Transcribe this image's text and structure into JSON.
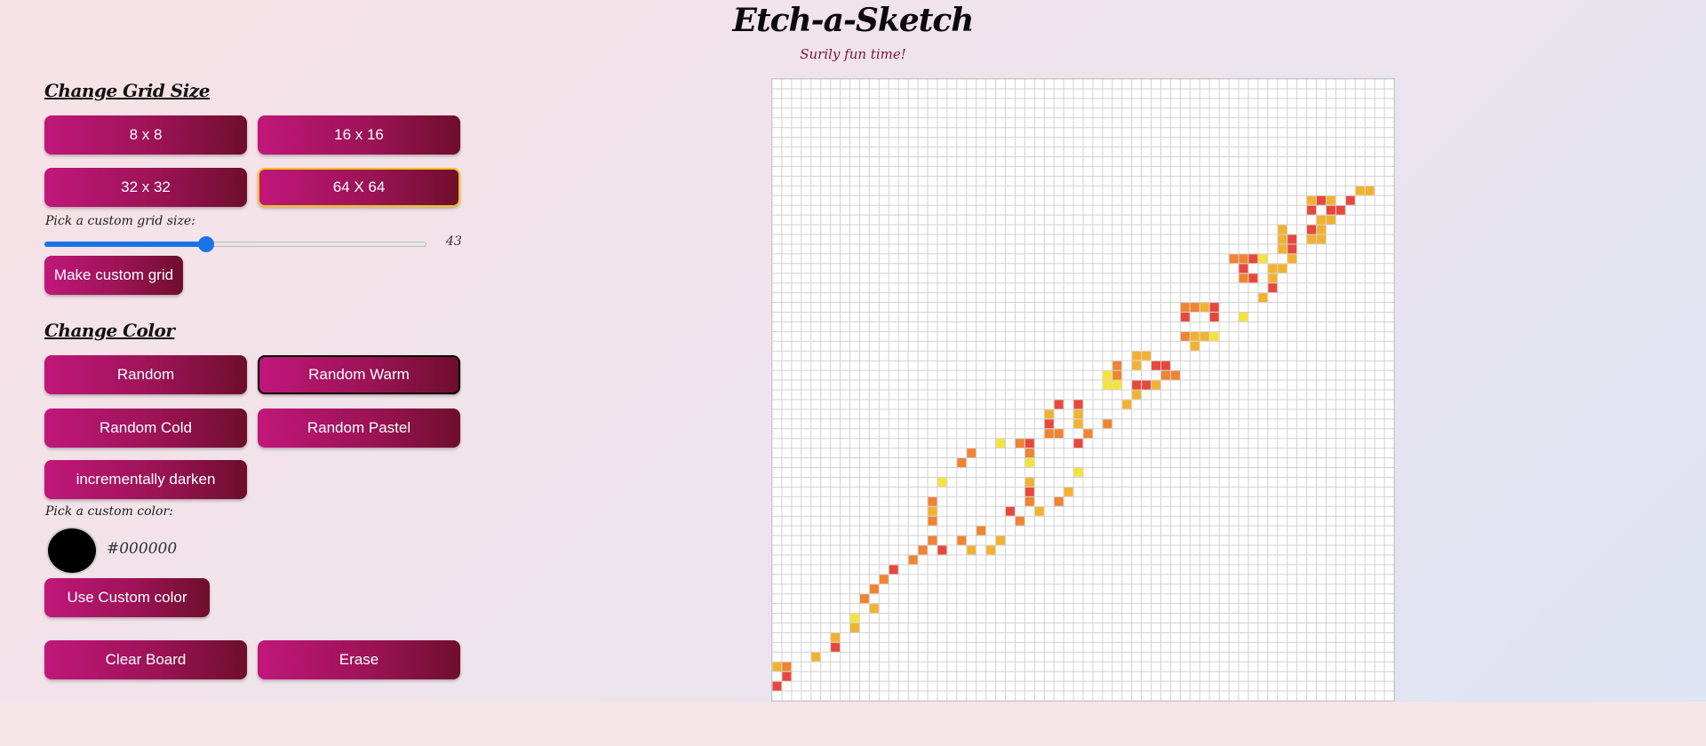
{
  "header": {
    "title": "Etch-a-Sketch",
    "subtitle": "Surily fun time!"
  },
  "grid_size": {
    "heading": "Change Grid Size",
    "buttons": [
      "8 x 8",
      "16 x 16",
      "32 x 32",
      "64 X 64"
    ],
    "selected": "64 X 64",
    "custom_label": "Pick a custom grid size:",
    "slider_min": 1,
    "slider_max": 100,
    "slider_value": 43,
    "slider_value_text": "43",
    "make_custom_label": "Make custom grid"
  },
  "color": {
    "heading": "Change Color",
    "buttons": [
      "Random",
      "Random Warm",
      "Random Cold",
      "Random Pastel",
      "incrementally darken"
    ],
    "selected": "Random Warm",
    "custom_label": "Pick a custom color:",
    "custom_value": "#000000",
    "use_custom_label": "Use Custom color"
  },
  "actions": {
    "clear_label": "Clear Board",
    "erase_label": "Erase"
  },
  "board": {
    "grid_size": 64,
    "palette": {
      "r": "#e8483c",
      "o": "#ef8432",
      "a": "#f1b233",
      "y": "#f3e43d"
    },
    "painted_cells": [
      [
        60,
        59,
        "a"
      ],
      [
        61,
        59,
        "a"
      ],
      [
        55,
        60,
        "a"
      ],
      [
        56,
        60,
        "r"
      ],
      [
        57,
        60,
        "a"
      ],
      [
        59,
        60,
        "r"
      ],
      [
        55,
        61,
        "r"
      ],
      [
        57,
        61,
        "r"
      ],
      [
        58,
        61,
        "r"
      ],
      [
        56,
        62,
        "a"
      ],
      [
        57,
        62,
        "a"
      ],
      [
        52,
        63,
        "a"
      ],
      [
        55,
        63,
        "r"
      ],
      [
        56,
        63,
        "a"
      ],
      [
        52,
        64,
        "a"
      ],
      [
        53,
        64,
        "r"
      ],
      [
        55,
        64,
        "a"
      ],
      [
        56,
        64,
        "a"
      ],
      [
        52,
        65,
        "a"
      ],
      [
        53,
        65,
        "r"
      ],
      [
        47,
        66,
        "o"
      ],
      [
        48,
        66,
        "o"
      ],
      [
        49,
        66,
        "r"
      ],
      [
        50,
        66,
        "y"
      ],
      [
        53,
        66,
        "a"
      ],
      [
        48,
        67,
        "r"
      ],
      [
        51,
        67,
        "a"
      ],
      [
        52,
        67,
        "a"
      ],
      [
        48,
        68,
        "o"
      ],
      [
        49,
        68,
        "r"
      ],
      [
        51,
        68,
        "a"
      ],
      [
        51,
        69,
        "r"
      ],
      [
        50,
        70,
        "a"
      ],
      [
        42,
        71,
        "o"
      ],
      [
        43,
        71,
        "o"
      ],
      [
        44,
        71,
        "a"
      ],
      [
        45,
        71,
        "r"
      ],
      [
        42,
        72,
        "r"
      ],
      [
        45,
        72,
        "r"
      ],
      [
        48,
        72,
        "y"
      ],
      [
        42,
        74,
        "o"
      ],
      [
        43,
        74,
        "a"
      ],
      [
        44,
        74,
        "a"
      ],
      [
        45,
        74,
        "y"
      ],
      [
        43,
        75,
        "a"
      ],
      [
        37,
        76,
        "a"
      ],
      [
        38,
        76,
        "a"
      ],
      [
        35,
        77,
        "o"
      ],
      [
        37,
        77,
        "a"
      ],
      [
        39,
        77,
        "r"
      ],
      [
        40,
        77,
        "r"
      ],
      [
        34,
        78,
        "y"
      ],
      [
        35,
        78,
        "o"
      ],
      [
        40,
        78,
        "o"
      ],
      [
        41,
        78,
        "o"
      ],
      [
        34,
        79,
        "y"
      ],
      [
        35,
        79,
        "y"
      ],
      [
        37,
        79,
        "r"
      ],
      [
        38,
        79,
        "r"
      ],
      [
        39,
        79,
        "a"
      ],
      [
        37,
        80,
        "a"
      ],
      [
        29,
        81,
        "r"
      ],
      [
        31,
        81,
        "r"
      ],
      [
        36,
        81,
        "a"
      ],
      [
        28,
        82,
        "a"
      ],
      [
        31,
        82,
        "a"
      ],
      [
        28,
        83,
        "r"
      ],
      [
        31,
        83,
        "a"
      ],
      [
        34,
        83,
        "o"
      ],
      [
        28,
        84,
        "o"
      ],
      [
        29,
        84,
        "o"
      ],
      [
        32,
        84,
        "o"
      ],
      [
        23,
        85,
        "y"
      ],
      [
        25,
        85,
        "o"
      ],
      [
        26,
        85,
        "r"
      ],
      [
        31,
        85,
        "r"
      ],
      [
        20,
        86,
        "o"
      ],
      [
        26,
        86,
        "o"
      ],
      [
        19,
        87,
        "o"
      ],
      [
        26,
        87,
        "y"
      ],
      [
        31,
        88,
        "y"
      ],
      [
        17,
        89,
        "y"
      ],
      [
        26,
        89,
        "a"
      ],
      [
        26,
        90,
        "r"
      ],
      [
        30,
        90,
        "a"
      ],
      [
        16,
        91,
        "o"
      ],
      [
        26,
        91,
        "o"
      ],
      [
        29,
        91,
        "o"
      ],
      [
        16,
        92,
        "a"
      ],
      [
        24,
        92,
        "r"
      ],
      [
        27,
        92,
        "a"
      ],
      [
        16,
        93,
        "o"
      ],
      [
        25,
        93,
        "o"
      ],
      [
        21,
        94,
        "o"
      ],
      [
        16,
        95,
        "o"
      ],
      [
        19,
        95,
        "o"
      ],
      [
        23,
        95,
        "a"
      ],
      [
        15,
        96,
        "o"
      ],
      [
        17,
        96,
        "r"
      ],
      [
        20,
        96,
        "a"
      ],
      [
        22,
        96,
        "a"
      ],
      [
        14,
        97,
        "o"
      ],
      [
        12,
        98,
        "r"
      ],
      [
        11,
        99,
        "o"
      ],
      [
        10,
        100,
        "o"
      ],
      [
        9,
        101,
        "o"
      ],
      [
        10,
        102,
        "a"
      ],
      [
        8,
        103,
        "y"
      ],
      [
        8,
        104,
        "a"
      ],
      [
        6,
        105,
        "a"
      ],
      [
        6,
        106,
        "r"
      ],
      [
        4,
        107,
        "a"
      ],
      [
        0,
        108,
        "a"
      ],
      [
        1,
        108,
        "o"
      ],
      [
        1,
        109,
        "r"
      ],
      [
        0,
        110,
        "r"
      ]
    ]
  }
}
